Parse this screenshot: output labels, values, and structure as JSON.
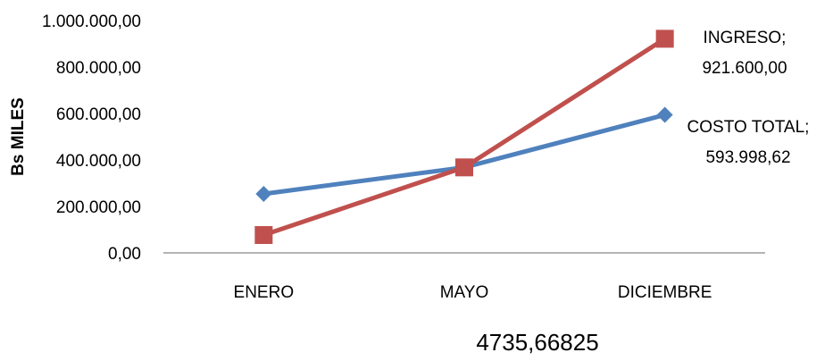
{
  "chart_data": {
    "type": "line",
    "categories": [
      "ENERO",
      "MAYO",
      "DICIEMBRE"
    ],
    "ylabel": "Bs MILES",
    "ylim": [
      0,
      1000000
    ],
    "yticks": [
      0,
      200000,
      400000,
      600000,
      800000,
      1000000
    ],
    "ytick_labels": [
      "0,00",
      "200.000,00",
      "400.000,00",
      "600.000,00",
      "800.000,00",
      "1.000.000,00"
    ],
    "grid": false,
    "legend": "none",
    "series": [
      {
        "name": "COSTO TOTAL",
        "values": [
          254000,
          368000,
          593998.62
        ],
        "color": "#4f81bd",
        "marker": "diamond"
      },
      {
        "name": "INGRESO",
        "values": [
          76800,
          368000,
          921600
        ],
        "color": "#c0504d",
        "marker": "square"
      }
    ],
    "data_labels": [
      {
        "series": "INGRESO",
        "point": "DICIEMBRE",
        "line1": "INGRESO;",
        "line2": "921.600,00"
      },
      {
        "series": "COSTO TOTAL",
        "point": "DICIEMBRE",
        "line1": "COSTO TOTAL;",
        "line2": "593.998,62"
      }
    ]
  },
  "footer_value": "4735,66825"
}
